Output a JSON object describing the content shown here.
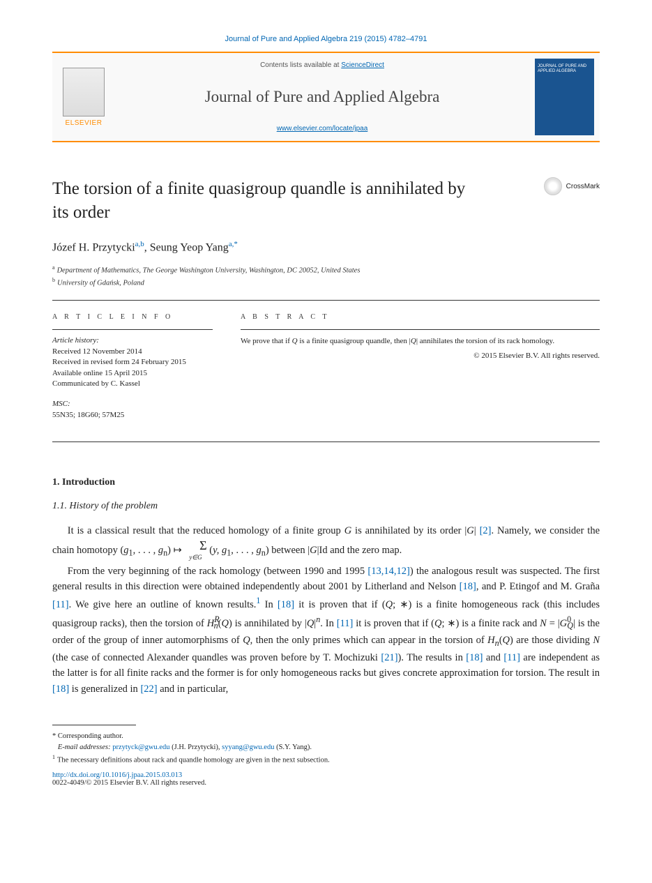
{
  "citation": "Journal of Pure and Applied Algebra 219 (2015) 4782–4791",
  "header": {
    "contents_prefix": "Contents lists available at ",
    "contents_link": "ScienceDirect",
    "journal_name": "Journal of Pure and Applied Algebra",
    "locate_url": "www.elsevier.com/locate/jpaa",
    "elsevier_label": "ELSEVIER",
    "cover_label": "JOURNAL OF PURE AND APPLIED ALGEBRA"
  },
  "title": "The torsion of a finite quasigroup quandle is annihilated by its order",
  "crossmark_label": "CrossMark",
  "authors": {
    "a1_name": "Józef H. Przytycki",
    "a1_sup": "a,b",
    "a2_name": "Seung Yeop Yang",
    "a2_sup": "a,",
    "a2_star": "*"
  },
  "affiliations": {
    "a": "Department of Mathematics, The George Washington University, Washington, DC 20052, United States",
    "b": "University of Gdańsk, Poland"
  },
  "info": {
    "head": "A R T I C L E   I N F O",
    "history_label": "Article history:",
    "received": "Received 12 November 2014",
    "revised": "Received in revised form 24 February 2015",
    "online": "Available online 15 April 2015",
    "communicated": "Communicated by C. Kassel",
    "msc_label": "MSC:",
    "msc": "55N35; 18G60; 57M25"
  },
  "abstract": {
    "head": "A B S T R A C T",
    "text_1": "We prove that if ",
    "text_q1": "Q",
    "text_2": " is a finite quasigroup quandle, then |",
    "text_q2": "Q",
    "text_3": "| annihilates the torsion of its rack homology.",
    "copyright": "© 2015 Elsevier B.V. All rights reserved."
  },
  "section": {
    "num": "1. Introduction",
    "sub": "1.1. History of the problem"
  },
  "body": {
    "p1a": "It is a classical result that the reduced homology of a finite group ",
    "p1_G": "G",
    "p1b": " is annihilated by its order |",
    "p1_G2": "G",
    "p1c": "| ",
    "p1_ref2": "[2]",
    "p1d": ". Namely, we consider the chain homotopy (",
    "p1_g1": "g",
    "p1_sub1": "1",
    "p1e": ", . . . , ",
    "p1_gn": "g",
    "p1_subn": "n",
    "p1f": ") ↦ ",
    "p1_sigma": "Σ",
    "p1_yinG": "y∈G",
    "p1g": " (",
    "p1_y": "y, g",
    "p1_s1": "1",
    "p1h": ", . . . , ",
    "p1_gn2": "g",
    "p1_sn2": "n",
    "p1i": ") between |",
    "p1_G3": "G",
    "p1j": "|Id and the zero map.",
    "p2a": "From the very beginning of the rack homology (between 1990 and 1995 ",
    "p2_ref1": "[13,14,12]",
    "p2b": ") the analogous result was suspected. The first general results in this direction were obtained independently about 2001 by Litherland and Nelson ",
    "p2_ref2": "[18]",
    "p2c": ", and P. Etingof and M. Graña ",
    "p2_ref3": "[11]",
    "p2d": ". We give here an outline of known results.",
    "p2_fn1": "1",
    "p2e": " In ",
    "p2_ref4": "[18]",
    "p2f": " it is proven that if (",
    "p2_Q1": "Q",
    "p2g": "; ∗) is a finite homogeneous rack (this includes quasigroup racks), then the torsion of ",
    "p2_H": "H",
    "p2_Hsup": "R",
    "p2_Hsub": "n",
    "p2h": "(",
    "p2_Q2": "Q",
    "p2i": ") is annihilated by |",
    "p2_Q3": "Q",
    "p2j": "|",
    "p2_nsup": "n",
    "p2k": ". In ",
    "p2_ref5": "[11]",
    "p2l": " it is proven that if (",
    "p2_Q4": "Q",
    "p2m": "; ∗) is a finite rack and ",
    "p2_N": "N",
    "p2n": " = |",
    "p2_G0": "G",
    "p2_G0sup": "0",
    "p2_G0sub": "Q",
    "p2o": "| is the order of the group of inner automorphisms of ",
    "p2_Q5": "Q",
    "p2p": ", then the only primes which can appear in the torsion of ",
    "p2_Hn": "H",
    "p2_Hnsub": "n",
    "p2q": "(",
    "p2_Q6": "Q",
    "p2r": ") are those dividing ",
    "p2_N2": "N",
    "p2s": " (the case of connected Alexander quandles was proven before by T. Mochizuki ",
    "p2_ref6": "[21]",
    "p2t": "). The results in ",
    "p2_ref7": "[18]",
    "p2u": " and ",
    "p2_ref8": "[11]",
    "p2v": " are independent as the latter is for all finite racks and the former is for only homogeneous racks but gives concrete approximation for torsion. The result in ",
    "p2_ref9": "[18]",
    "p2w": " is generalized in ",
    "p2_ref10": "[22]",
    "p2x": " and in particular,"
  },
  "footnotes": {
    "corr_label": "* Corresponding author.",
    "email_label": "E-mail addresses:",
    "email1": "przytyck@gwu.edu",
    "email1_name": " (J.H. Przytycki), ",
    "email2": "syyang@gwu.edu",
    "email2_name": " (S.Y. Yang).",
    "fn1": "The necessary definitions about rack and quandle homology are given in the next subsection."
  },
  "doi": {
    "url": "http://dx.doi.org/10.1016/j.jpaa.2015.03.013",
    "issn_copy": "0022-4049/© 2015 Elsevier B.V. All rights reserved."
  },
  "colors": {
    "link": "#0066b3",
    "accent": "#ff8c00",
    "text": "#222222",
    "cover_bg": "#1a5490"
  }
}
